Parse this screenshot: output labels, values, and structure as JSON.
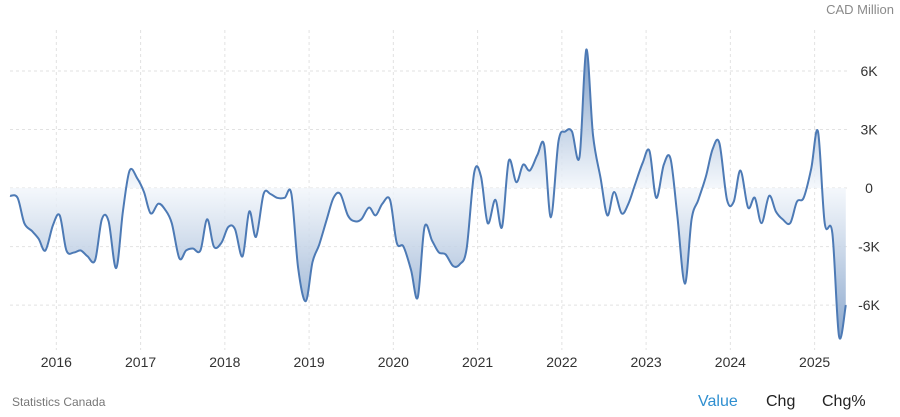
{
  "unit_label": "CAD Million",
  "source": "Statistics Canada",
  "tabs": [
    {
      "label": "Value",
      "active": true
    },
    {
      "label": "Chg",
      "active": false
    },
    {
      "label": "Chg%",
      "active": false
    }
  ],
  "colors": {
    "line": "#4d7ab5",
    "fill_top": "#3f6eab",
    "fill_zero": "#f2f6fb",
    "grid": "#e2e2e2",
    "active_tab": "#2f8fd0"
  },
  "chart_data": {
    "type": "area",
    "title": "",
    "xlabel": "",
    "ylabel": "CAD Million",
    "ylim": [
      -8300,
      8100
    ],
    "xlim": [
      2015.45,
      2025.42
    ],
    "x_ticks": [
      2016,
      2017,
      2018,
      2019,
      2020,
      2021,
      2022,
      2023,
      2024,
      2025
    ],
    "y_ticks": [
      6000,
      3000,
      0,
      -3000,
      -6000
    ],
    "y_tick_labels": [
      "6K",
      "3K",
      "0",
      "-3K",
      "-6K"
    ],
    "grid": true,
    "series": [
      {
        "x": [
          2015.45,
          2015.54,
          2015.62,
          2015.71,
          2015.79,
          2015.87,
          2015.96,
          2016.04,
          2016.12,
          2016.21,
          2016.29,
          2016.37,
          2016.46,
          2016.54,
          2016.62,
          2016.71,
          2016.79,
          2016.87,
          2016.96,
          2017.04,
          2017.12,
          2017.21,
          2017.29,
          2017.37,
          2017.46,
          2017.54,
          2017.62,
          2017.71,
          2017.79,
          2017.87,
          2017.96,
          2018.04,
          2018.12,
          2018.21,
          2018.29,
          2018.37,
          2018.46,
          2018.54,
          2018.62,
          2018.71,
          2018.79,
          2018.87,
          2018.96,
          2019.04,
          2019.12,
          2019.21,
          2019.29,
          2019.37,
          2019.46,
          2019.54,
          2019.62,
          2019.71,
          2019.79,
          2019.87,
          2019.96,
          2020.04,
          2020.12,
          2020.21,
          2020.29,
          2020.37,
          2020.46,
          2020.54,
          2020.62,
          2020.71,
          2020.79,
          2020.87,
          2020.96,
          2021.04,
          2021.12,
          2021.21,
          2021.29,
          2021.37,
          2021.46,
          2021.54,
          2021.62,
          2021.71,
          2021.79,
          2021.87,
          2021.96,
          2022.04,
          2022.12,
          2022.21,
          2022.29,
          2022.37,
          2022.46,
          2022.54,
          2022.62,
          2022.71,
          2022.79,
          2022.87,
          2022.96,
          2023.04,
          2023.12,
          2023.21,
          2023.29,
          2023.37,
          2023.46,
          2023.54,
          2023.62,
          2023.71,
          2023.79,
          2023.87,
          2023.96,
          2024.04,
          2024.12,
          2024.21,
          2024.29,
          2024.37,
          2024.46,
          2024.54,
          2024.62,
          2024.71,
          2024.79,
          2024.87,
          2024.96,
          2025.04,
          2025.12,
          2025.21,
          2025.29,
          2025.37
        ],
        "values": [
          -400,
          -500,
          -1800,
          -2200,
          -2600,
          -3200,
          -1900,
          -1400,
          -3200,
          -3300,
          -3200,
          -3500,
          -3700,
          -1600,
          -1700,
          -4100,
          -1200,
          900,
          500,
          -200,
          -1300,
          -800,
          -1100,
          -1800,
          -3600,
          -3200,
          -3100,
          -3200,
          -1600,
          -3000,
          -2800,
          -2000,
          -2100,
          -3500,
          -1200,
          -2500,
          -300,
          -300,
          -500,
          -500,
          -300,
          -4100,
          -5800,
          -3800,
          -2900,
          -1600,
          -500,
          -300,
          -1400,
          -1700,
          -1600,
          -1000,
          -1400,
          -800,
          -600,
          -2800,
          -3000,
          -4200,
          -5600,
          -2000,
          -2700,
          -3300,
          -3400,
          -4000,
          -3900,
          -3100,
          800,
          600,
          -1800,
          -600,
          -2000,
          1400,
          300,
          1200,
          900,
          1700,
          2200,
          -1500,
          2400,
          2900,
          2900,
          1600,
          7100,
          2700,
          500,
          -1400,
          -200,
          -1300,
          -800,
          200,
          1300,
          1900,
          -500,
          1200,
          1500,
          -1400,
          -4900,
          -1600,
          -600,
          600,
          2000,
          2300,
          -600,
          -700,
          900,
          -1000,
          -500,
          -1800,
          -400,
          -1200,
          -1600,
          -1800,
          -700,
          -500,
          1000,
          2900,
          -1800,
          -2300,
          -7600,
          -6000
        ]
      }
    ]
  }
}
